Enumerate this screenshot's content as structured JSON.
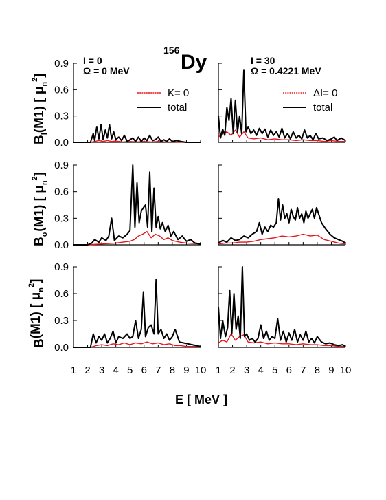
{
  "figure": {
    "nucleus_mass": "156",
    "nucleus_symbol": "Dy",
    "x_axis_label": "E [ MeV ]",
    "y_axis_labels": [
      {
        "base": "B",
        "sub": "l",
        "rest": "(M1) [ ",
        "mu": "μ",
        "mu_sub": "n",
        "mu_sup": "2",
        "end": "]"
      },
      {
        "base": "B",
        "sub": "σ",
        "rest": "(M1) [ ",
        "mu": "μ",
        "mu_sub": "n",
        "mu_sup": "2",
        "end": "]"
      },
      {
        "base": "B",
        "sub": "",
        "rest": "(M1) [ ",
        "mu": "μ",
        "mu_sub": "n",
        "mu_sup": "2",
        "end": "]"
      }
    ],
    "left_annotation": {
      "line1": "I = 0",
      "line2": "Ω = 0 MeV"
    },
    "right_annotation": {
      "line1": "I = 30",
      "line2": "Ω = 0.4221 MeV"
    },
    "left_legend": {
      "component": "K= 0",
      "total": "total"
    },
    "right_legend": {
      "component": "ΔI= 0",
      "total": "total"
    },
    "colors": {
      "total": "#000000",
      "component": "#e8141b"
    }
  },
  "chart_data": [
    {
      "type": "line",
      "row": 1,
      "column": "left",
      "xlim": [
        1,
        10
      ],
      "ylim": [
        0,
        0.9
      ],
      "xticks": [
        "1",
        "2",
        "3",
        "4",
        "5",
        "6",
        "7",
        "8",
        "9",
        "10"
      ],
      "yticks": [
        "0.0",
        "0.3",
        "0.6",
        "0.9"
      ],
      "series": [
        {
          "name": "total",
          "x": [
            1,
            2.2,
            2.4,
            2.5,
            2.65,
            2.8,
            2.95,
            3.1,
            3.25,
            3.4,
            3.55,
            3.7,
            3.85,
            4.0,
            4.2,
            4.4,
            4.6,
            4.8,
            5.0,
            5.2,
            5.4,
            5.6,
            5.8,
            6.0,
            6.2,
            6.4,
            6.6,
            6.8,
            7.0,
            7.2,
            7.4,
            7.6,
            7.8,
            8.0,
            8.3,
            8.6,
            9.0,
            10
          ],
          "y": [
            0,
            0,
            0.1,
            0.02,
            0.18,
            0.04,
            0.2,
            0.03,
            0.14,
            0.05,
            0.2,
            0.04,
            0.12,
            0.03,
            0.06,
            0.02,
            0.08,
            0.01,
            0.03,
            0.05,
            0.01,
            0.06,
            0.01,
            0.05,
            0.02,
            0.08,
            0.02,
            0.03,
            0.06,
            0.01,
            0.03,
            0.01,
            0.04,
            0.01,
            0.02,
            0.01,
            0,
            0
          ]
        },
        {
          "name": "K= 0",
          "x": [
            1,
            2.2,
            2.5,
            2.8,
            3.1,
            3.4,
            3.7,
            4.0,
            4.5,
            5.0,
            5.5,
            6.0,
            6.5,
            7.0,
            7.5,
            8.0,
            9.0,
            10
          ],
          "y": [
            0,
            0,
            0.01,
            0.02,
            0.01,
            0.02,
            0.01,
            0.015,
            0.005,
            0.01,
            0.005,
            0.01,
            0.005,
            0.01,
            0.005,
            0.005,
            0,
            0
          ]
        }
      ]
    },
    {
      "type": "line",
      "row": 1,
      "column": "right",
      "xlim": [
        1,
        10
      ],
      "ylim": [
        0,
        0.9
      ],
      "xticks": [
        "1",
        "2",
        "3",
        "4",
        "5",
        "6",
        "7",
        "8",
        "9",
        "10"
      ],
      "yticks": [
        "0.0",
        "0.3",
        "0.6",
        "0.9"
      ],
      "series": [
        {
          "name": "total",
          "x": [
            1.0,
            1.15,
            1.3,
            1.45,
            1.6,
            1.75,
            1.9,
            2.05,
            2.2,
            2.35,
            2.5,
            2.65,
            2.8,
            2.95,
            3.1,
            3.3,
            3.5,
            3.7,
            3.9,
            4.1,
            4.3,
            4.5,
            4.7,
            4.9,
            5.1,
            5.3,
            5.5,
            5.7,
            5.9,
            6.1,
            6.3,
            6.5,
            6.7,
            6.9,
            7.1,
            7.3,
            7.5,
            7.7,
            7.9,
            8.1,
            8.4,
            8.7,
            9.0,
            9.2,
            9.4,
            9.7,
            10
          ],
          "y": [
            0.3,
            0.05,
            0.15,
            0.08,
            0.4,
            0.25,
            0.5,
            0.1,
            0.48,
            0.12,
            0.3,
            0.1,
            0.82,
            0.12,
            0.18,
            0.1,
            0.14,
            0.08,
            0.16,
            0.1,
            0.15,
            0.06,
            0.14,
            0.08,
            0.12,
            0.06,
            0.16,
            0.05,
            0.1,
            0.04,
            0.12,
            0.05,
            0.08,
            0.04,
            0.14,
            0.05,
            0.08,
            0.03,
            0.1,
            0.04,
            0.05,
            0.02,
            0.04,
            0.06,
            0.02,
            0.05,
            0.02
          ]
        },
        {
          "name": "ΔI= 0",
          "x": [
            1.0,
            1.3,
            1.6,
            1.9,
            2.2,
            2.5,
            2.8,
            3.1,
            3.5,
            4.0,
            4.5,
            5.0,
            5.5,
            6.0,
            6.5,
            7.0,
            7.5,
            8.0,
            8.5,
            9.0,
            9.5,
            10
          ],
          "y": [
            0.06,
            0.1,
            0.12,
            0.08,
            0.14,
            0.06,
            0.12,
            0.05,
            0.04,
            0.05,
            0.03,
            0.04,
            0.03,
            0.03,
            0.02,
            0.03,
            0.02,
            0.02,
            0.01,
            0.02,
            0.01,
            0.01
          ]
        }
      ]
    },
    {
      "type": "line",
      "row": 2,
      "column": "left",
      "xlim": [
        1,
        10
      ],
      "ylim": [
        0,
        0.9
      ],
      "xticks": [
        "1",
        "2",
        "3",
        "4",
        "5",
        "6",
        "7",
        "8",
        "9",
        "10"
      ],
      "yticks": [
        "0.0",
        "0.3",
        "0.6",
        "0.9"
      ],
      "series": [
        {
          "name": "total",
          "x": [
            1,
            2.0,
            2.3,
            2.5,
            2.8,
            3.0,
            3.3,
            3.5,
            3.7,
            3.9,
            4.2,
            4.5,
            4.8,
            5.0,
            5.2,
            5.35,
            5.5,
            5.65,
            5.8,
            5.95,
            6.1,
            6.25,
            6.4,
            6.55,
            6.7,
            6.85,
            7.0,
            7.15,
            7.3,
            7.5,
            7.7,
            7.9,
            8.1,
            8.4,
            8.7,
            9.0,
            9.3,
            9.6,
            10
          ],
          "y": [
            0,
            0,
            0.02,
            0.06,
            0.03,
            0.08,
            0.05,
            0.1,
            0.3,
            0.05,
            0.1,
            0.08,
            0.12,
            0.16,
            0.9,
            0.2,
            0.7,
            0.25,
            0.38,
            0.42,
            0.45,
            0.2,
            0.82,
            0.15,
            0.64,
            0.2,
            0.32,
            0.18,
            0.25,
            0.15,
            0.22,
            0.1,
            0.15,
            0.06,
            0.1,
            0.04,
            0.06,
            0.02,
            0.01
          ]
        },
        {
          "name": "K= 0",
          "x": [
            1,
            2.0,
            3.0,
            4.0,
            4.5,
            5.0,
            5.3,
            5.6,
            5.9,
            6.2,
            6.5,
            6.8,
            7.1,
            7.4,
            7.7,
            8.0,
            8.5,
            9.0,
            10
          ],
          "y": [
            0,
            0,
            0.01,
            0.02,
            0.03,
            0.04,
            0.06,
            0.1,
            0.12,
            0.15,
            0.08,
            0.12,
            0.1,
            0.06,
            0.08,
            0.05,
            0.03,
            0.02,
            0.01
          ]
        }
      ]
    },
    {
      "type": "line",
      "row": 2,
      "column": "right",
      "xlim": [
        1,
        10
      ],
      "ylim": [
        0,
        0.9
      ],
      "xticks": [
        "1",
        "2",
        "3",
        "4",
        "5",
        "6",
        "7",
        "8",
        "9",
        "10"
      ],
      "yticks": [
        "0.0",
        "0.3",
        "0.6",
        "0.9"
      ],
      "series": [
        {
          "name": "total",
          "x": [
            1.0,
            1.3,
            1.6,
            1.9,
            2.2,
            2.5,
            2.8,
            3.1,
            3.4,
            3.7,
            3.9,
            4.1,
            4.3,
            4.5,
            4.7,
            4.9,
            5.1,
            5.25,
            5.4,
            5.55,
            5.7,
            5.85,
            6.0,
            6.15,
            6.3,
            6.45,
            6.6,
            6.75,
            6.9,
            7.05,
            7.2,
            7.35,
            7.5,
            7.65,
            7.8,
            7.95,
            8.1,
            8.3,
            8.6,
            8.9,
            9.2,
            9.5,
            9.8,
            10
          ],
          "y": [
            0.02,
            0.05,
            0.03,
            0.08,
            0.05,
            0.06,
            0.1,
            0.08,
            0.12,
            0.15,
            0.25,
            0.12,
            0.2,
            0.15,
            0.22,
            0.2,
            0.25,
            0.52,
            0.28,
            0.45,
            0.3,
            0.35,
            0.25,
            0.4,
            0.32,
            0.28,
            0.42,
            0.3,
            0.35,
            0.25,
            0.38,
            0.3,
            0.35,
            0.4,
            0.3,
            0.42,
            0.35,
            0.25,
            0.18,
            0.12,
            0.08,
            0.06,
            0.04,
            0.02
          ]
        },
        {
          "name": "ΔI= 0",
          "x": [
            1.0,
            1.5,
            2.0,
            2.5,
            3.0,
            3.5,
            4.0,
            4.5,
            5.0,
            5.5,
            6.0,
            6.5,
            7.0,
            7.5,
            8.0,
            8.5,
            9.0,
            9.5,
            10
          ],
          "y": [
            0.01,
            0.02,
            0.02,
            0.03,
            0.03,
            0.04,
            0.06,
            0.07,
            0.08,
            0.1,
            0.09,
            0.1,
            0.12,
            0.1,
            0.11,
            0.06,
            0.04,
            0.02,
            0.01
          ]
        }
      ]
    },
    {
      "type": "line",
      "row": 3,
      "column": "left",
      "xlim": [
        1,
        10
      ],
      "ylim": [
        0,
        0.9
      ],
      "xticks": [
        "1",
        "2",
        "3",
        "4",
        "5",
        "6",
        "7",
        "8",
        "9",
        "10"
      ],
      "yticks": [
        "0.0",
        "0.3",
        "0.6",
        "0.9"
      ],
      "series": [
        {
          "name": "total",
          "x": [
            1,
            2.2,
            2.4,
            2.6,
            2.8,
            3.0,
            3.2,
            3.4,
            3.6,
            3.8,
            4.0,
            4.2,
            4.5,
            4.8,
            5.0,
            5.2,
            5.4,
            5.6,
            5.8,
            5.95,
            6.1,
            6.3,
            6.5,
            6.7,
            6.85,
            7.0,
            7.2,
            7.4,
            7.6,
            7.8,
            8.0,
            8.2,
            8.5,
            8.8,
            9.1,
            9.4,
            9.7,
            10
          ],
          "y": [
            0,
            0,
            0.15,
            0.05,
            0.12,
            0.08,
            0.15,
            0.05,
            0.1,
            0.18,
            0.05,
            0.12,
            0.1,
            0.15,
            0.1,
            0.12,
            0.3,
            0.1,
            0.2,
            0.62,
            0.12,
            0.22,
            0.25,
            0.15,
            0.76,
            0.15,
            0.2,
            0.1,
            0.15,
            0.08,
            0.12,
            0.2,
            0.06,
            0.05,
            0.04,
            0.03,
            0.02,
            0.01
          ]
        },
        {
          "name": "K= 0",
          "x": [
            1,
            2.2,
            2.6,
            3.0,
            3.4,
            3.8,
            4.2,
            4.6,
            5.0,
            5.4,
            5.8,
            6.2,
            6.6,
            7.0,
            7.4,
            7.8,
            8.2,
            8.6,
            9.0,
            10
          ],
          "y": [
            0,
            0,
            0.02,
            0.03,
            0.02,
            0.04,
            0.03,
            0.05,
            0.03,
            0.05,
            0.04,
            0.06,
            0.04,
            0.05,
            0.03,
            0.04,
            0.02,
            0.02,
            0.01,
            0.01
          ]
        }
      ]
    },
    {
      "type": "line",
      "row": 3,
      "column": "right",
      "xlim": [
        1,
        10
      ],
      "ylim": [
        0,
        0.9
      ],
      "xticks": [
        "1",
        "2",
        "3",
        "4",
        "5",
        "6",
        "7",
        "8",
        "9",
        "10"
      ],
      "yticks": [
        "0.0",
        "0.3",
        "0.6",
        "0.9"
      ],
      "series": [
        {
          "name": "total",
          "x": [
            1.0,
            1.15,
            1.3,
            1.5,
            1.65,
            1.8,
            1.95,
            2.1,
            2.25,
            2.4,
            2.55,
            2.7,
            2.85,
            3.0,
            3.2,
            3.4,
            3.6,
            3.8,
            4.0,
            4.2,
            4.4,
            4.6,
            4.8,
            5.0,
            5.2,
            5.4,
            5.6,
            5.8,
            6.0,
            6.2,
            6.4,
            6.6,
            6.8,
            7.0,
            7.2,
            7.4,
            7.6,
            7.8,
            8.0,
            8.3,
            8.6,
            8.9,
            9.2,
            9.5,
            9.8,
            10
          ],
          "y": [
            0.45,
            0.1,
            0.3,
            0.12,
            0.22,
            0.64,
            0.15,
            0.6,
            0.2,
            0.35,
            0.1,
            0.9,
            0.12,
            0.15,
            0.08,
            0.1,
            0.06,
            0.1,
            0.25,
            0.1,
            0.18,
            0.08,
            0.12,
            0.1,
            0.32,
            0.08,
            0.18,
            0.06,
            0.16,
            0.08,
            0.2,
            0.06,
            0.14,
            0.08,
            0.18,
            0.06,
            0.1,
            0.05,
            0.12,
            0.06,
            0.04,
            0.05,
            0.03,
            0.02,
            0.03,
            0.01
          ]
        },
        {
          "name": "ΔI= 0",
          "x": [
            1.0,
            1.3,
            1.6,
            1.9,
            2.2,
            2.5,
            2.8,
            3.1,
            3.5,
            4.0,
            4.5,
            5.0,
            5.5,
            6.0,
            6.5,
            7.0,
            7.5,
            8.0,
            8.5,
            9.0,
            9.5,
            10
          ],
          "y": [
            0.05,
            0.08,
            0.06,
            0.15,
            0.08,
            0.12,
            0.14,
            0.06,
            0.05,
            0.06,
            0.04,
            0.05,
            0.04,
            0.04,
            0.03,
            0.04,
            0.03,
            0.03,
            0.02,
            0.02,
            0.01,
            0.01
          ]
        }
      ]
    }
  ]
}
